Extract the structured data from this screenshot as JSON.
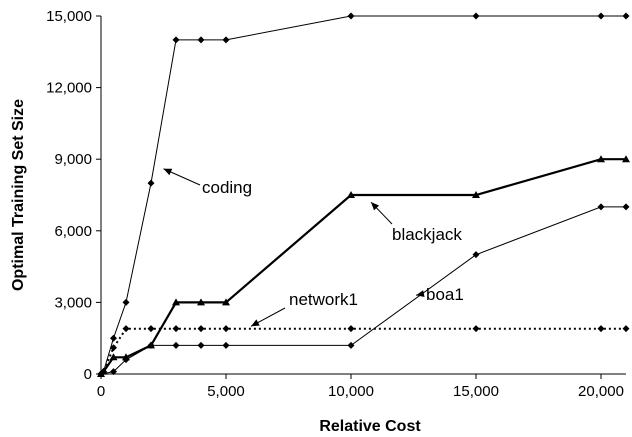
{
  "chart_data": {
    "type": "line",
    "xlabel": "Relative Cost",
    "ylabel": "Optimal Training Set Size",
    "xlim": [
      0,
      21000
    ],
    "ylim": [
      0,
      15000
    ],
    "x_ticks": [
      0,
      5000,
      10000,
      15000,
      20000
    ],
    "x_tick_labels": [
      "0",
      "5,000",
      "10,000",
      "15,000",
      "20,000"
    ],
    "y_ticks": [
      0,
      3000,
      6000,
      9000,
      12000,
      15000
    ],
    "y_tick_labels": [
      "0",
      "3,000",
      "6,000",
      "9,000",
      "12,000",
      "15,000"
    ],
    "grid": false,
    "legend": "none (series labelled with arrow annotations)",
    "series": [
      {
        "name": "coding",
        "style": "thin",
        "marker": "diamond",
        "points": [
          [
            0,
            0
          ],
          [
            100,
            100
          ],
          [
            500,
            1500
          ],
          [
            1000,
            3000
          ],
          [
            2000,
            8000
          ],
          [
            3000,
            14000
          ],
          [
            4000,
            14000
          ],
          [
            5000,
            14000
          ],
          [
            10000,
            15000
          ],
          [
            15000,
            15000
          ],
          [
            20000,
            15000
          ],
          [
            21000,
            15000
          ]
        ]
      },
      {
        "name": "blackjack",
        "style": "thick",
        "marker": "triangle",
        "points": [
          [
            0,
            0
          ],
          [
            100,
            100
          ],
          [
            500,
            700
          ],
          [
            1000,
            700
          ],
          [
            2000,
            1200
          ],
          [
            3000,
            3000
          ],
          [
            4000,
            3000
          ],
          [
            5000,
            3000
          ],
          [
            10000,
            7500
          ],
          [
            15000,
            7500
          ],
          [
            20000,
            9000
          ],
          [
            21000,
            9000
          ]
        ]
      },
      {
        "name": "network1",
        "style": "dotted",
        "marker": "diamond",
        "points": [
          [
            0,
            0
          ],
          [
            100,
            100
          ],
          [
            500,
            1100
          ],
          [
            1000,
            1900
          ],
          [
            2000,
            1900
          ],
          [
            3000,
            1900
          ],
          [
            4000,
            1900
          ],
          [
            5000,
            1900
          ],
          [
            10000,
            1900
          ],
          [
            15000,
            1900
          ],
          [
            20000,
            1900
          ],
          [
            21000,
            1900
          ]
        ]
      },
      {
        "name": "boa1",
        "style": "thin",
        "marker": "diamond",
        "points": [
          [
            0,
            0
          ],
          [
            500,
            100
          ],
          [
            1000,
            600
          ],
          [
            2000,
            1200
          ],
          [
            3000,
            1200
          ],
          [
            4000,
            1200
          ],
          [
            5000,
            1200
          ],
          [
            10000,
            1200
          ],
          [
            15000,
            5000
          ],
          [
            20000,
            7000
          ],
          [
            21000,
            7000
          ]
        ]
      }
    ],
    "annotations": [
      {
        "text": "coding",
        "points_to": [
          2500,
          8600
        ]
      },
      {
        "text": "blackjack",
        "points_to": [
          10800,
          7200
        ]
      },
      {
        "text": "network1",
        "points_to": [
          6000,
          2000
        ]
      },
      {
        "text": "boa1",
        "points_to": [
          12600,
          3300
        ]
      }
    ]
  }
}
